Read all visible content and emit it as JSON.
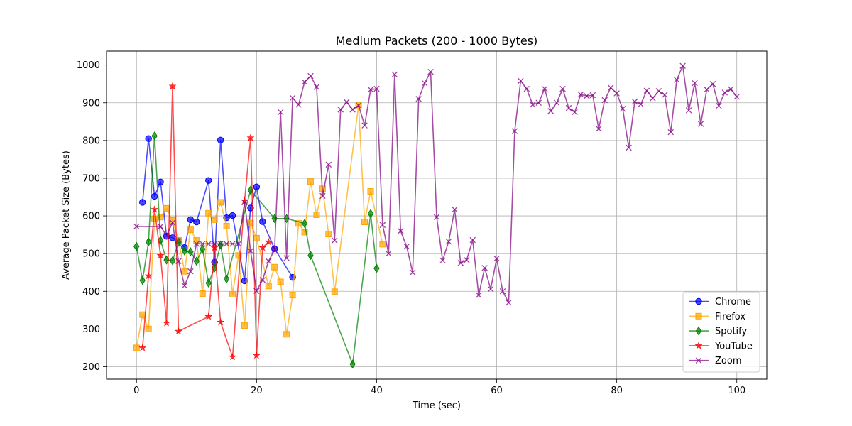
{
  "chart_data": {
    "type": "line",
    "title": "Medium Packets (200 - 1000 Bytes)",
    "xlabel": "Time (sec)",
    "ylabel": "Average Packet Size (Bytes)",
    "xlim": [
      -5,
      105
    ],
    "ylim": [
      167,
      1037
    ],
    "xticks": [
      0,
      20,
      40,
      60,
      80,
      100
    ],
    "yticks": [
      200,
      300,
      400,
      500,
      600,
      700,
      800,
      900,
      1000
    ],
    "grid": true,
    "legend_position": "lower-right",
    "series": [
      {
        "name": "Chrome",
        "color": "#0000ff",
        "marker": "circle",
        "x": [
          1,
          2,
          3,
          4,
          5,
          6,
          7,
          8,
          9,
          10,
          12,
          13,
          14,
          15,
          16,
          18,
          19,
          20,
          21,
          23,
          26
        ],
        "y": [
          636,
          805,
          652,
          690,
          546,
          542,
          535,
          516,
          590,
          584,
          694,
          477,
          801,
          595,
          601,
          428,
          621,
          677,
          585,
          513,
          437
        ]
      },
      {
        "name": "Firefox",
        "color": "#ffa500",
        "marker": "square",
        "x": [
          0,
          1,
          2,
          3,
          4,
          5,
          6,
          7,
          8,
          9,
          10,
          11,
          12,
          13,
          14,
          15,
          16,
          17,
          18,
          19,
          20,
          22,
          23,
          24,
          25,
          26,
          27,
          28,
          29,
          30,
          31,
          32,
          33,
          37,
          38,
          39,
          41
        ],
        "y": [
          250,
          338,
          300,
          592,
          597,
          620,
          588,
          535,
          453,
          563,
          535,
          394,
          607,
          590,
          636,
          573,
          392,
          495,
          309,
          581,
          541,
          414,
          464,
          425,
          286,
          390,
          580,
          557,
          691,
          603,
          672,
          552,
          399,
          894,
          584,
          665,
          525
        ]
      },
      {
        "name": "Spotify",
        "color": "#008000",
        "marker": "diamond",
        "x": [
          0,
          1,
          2,
          3,
          4,
          5,
          6,
          7,
          8,
          9,
          10,
          11,
          12,
          13,
          14,
          15,
          19,
          23,
          25,
          28,
          29,
          36,
          39,
          40
        ],
        "y": [
          519,
          429,
          531,
          812,
          535,
          483,
          481,
          530,
          507,
          505,
          480,
          512,
          422,
          462,
          523,
          433,
          668,
          593,
          593,
          580,
          495,
          207,
          606,
          461
        ]
      },
      {
        "name": "YouTube",
        "color": "#ff0000",
        "marker": "star",
        "x": [
          1,
          2,
          3,
          4,
          5,
          6,
          7,
          12,
          13,
          14,
          16,
          18,
          19,
          20,
          21,
          22
        ],
        "y": [
          250,
          441,
          617,
          495,
          316,
          944,
          294,
          333,
          516,
          318,
          226,
          640,
          807,
          230,
          516,
          531
        ]
      },
      {
        "name": "Zoom",
        "color": "#800080",
        "marker": "x",
        "x": [
          0,
          4,
          5,
          6,
          7,
          8,
          9,
          10,
          11,
          12,
          13,
          14,
          15,
          16,
          17,
          18,
          19,
          20,
          21,
          22,
          23,
          24,
          25,
          26,
          27,
          28,
          29,
          30,
          31,
          32,
          33,
          34,
          35,
          36,
          37,
          38,
          39,
          40,
          41,
          42,
          43,
          44,
          45,
          46,
          47,
          48,
          49,
          50,
          51,
          52,
          53,
          54,
          55,
          56,
          57,
          58,
          59,
          60,
          61,
          62,
          63,
          64,
          65,
          66,
          67,
          68,
          69,
          70,
          71,
          72,
          73,
          74,
          75,
          76,
          77,
          78,
          79,
          80,
          81,
          82,
          83,
          84,
          85,
          86,
          87,
          88,
          89,
          90,
          91,
          92,
          93,
          94,
          95,
          96,
          97,
          98,
          99,
          100
        ],
        "y": [
          572,
          572,
          548,
          582,
          480,
          415,
          453,
          526,
          526,
          526,
          526,
          526,
          526,
          526,
          526,
          636,
          507,
          401,
          430,
          480,
          510,
          875,
          488,
          913,
          895,
          955,
          971,
          942,
          653,
          736,
          535,
          882,
          902,
          882,
          893,
          840,
          935,
          937,
          576,
          500,
          975,
          560,
          519,
          450,
          910,
          952,
          982,
          597,
          482,
          532,
          617,
          475,
          483,
          536,
          390,
          462,
          406,
          487,
          400,
          370,
          825,
          958,
          937,
          895,
          900,
          937,
          878,
          900,
          937,
          886,
          875,
          922,
          918,
          920,
          831,
          907,
          940,
          925,
          884,
          781,
          903,
          896,
          932,
          912,
          931,
          921,
          822,
          961,
          998,
          880,
          952,
          844,
          935,
          950,
          892,
          927,
          936,
          916
        ]
      }
    ]
  }
}
